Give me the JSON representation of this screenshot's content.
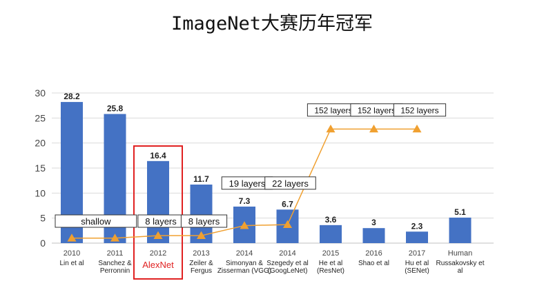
{
  "title": "ImageNet大赛历年冠军",
  "chart_data": {
    "type": "bar",
    "ylim": [
      0,
      30
    ],
    "yticks": [
      0,
      5,
      10,
      15,
      20,
      25,
      30
    ],
    "grid": true,
    "colors": {
      "bar": "#4472c4",
      "line": "#f0a030",
      "highlight": "#e02020",
      "text": "#222222"
    },
    "categories": [
      {
        "year": "2010",
        "team": "Lin et al"
      },
      {
        "year": "2011",
        "team": "Sanchez & Perronnin"
      },
      {
        "year": "2012",
        "team": "AlexNet"
      },
      {
        "year": "2013",
        "team": "Zeiler & Fergus"
      },
      {
        "year": "2014",
        "team": "Simonyan & Zisserman (VGG)"
      },
      {
        "year": "2014",
        "team": "Szegedy et al (GoogLeNet)"
      },
      {
        "year": "2015",
        "team": "He et al (ResNet)"
      },
      {
        "year": "2016",
        "team": "Shao et al"
      },
      {
        "year": "2017",
        "team": "Hu et al (SENet)"
      },
      {
        "year": "Human",
        "team": "Russakovsky et al"
      }
    ],
    "values": [
      28.2,
      25.8,
      16.4,
      11.7,
      7.3,
      6.7,
      3.6,
      3,
      2.3,
      5.1
    ],
    "value_labels": [
      "28.2",
      "25.8",
      "16.4",
      "11.7",
      "7.3",
      "6.7",
      "3.6",
      "3",
      "2.3",
      "5.1"
    ],
    "depth_series": {
      "marker_positions": [
        0,
        1,
        2,
        3,
        4,
        5,
        6,
        7,
        8
      ],
      "values": [
        1,
        1,
        1.5,
        1.5,
        3.5,
        3.7,
        22.8,
        22.8,
        22.8
      ]
    },
    "depth_labels": [
      {
        "text": "shallow",
        "anchor": 0,
        "span": 1.5,
        "value": 4.4
      },
      {
        "text": "8 layers",
        "anchor": 2,
        "span": 0,
        "value": 4.4
      },
      {
        "text": "8 layers",
        "anchor": 3,
        "span": 0,
        "value": 4.4
      },
      {
        "text": "19 layers",
        "anchor": 4,
        "span": 0,
        "value": 12.0
      },
      {
        "text": "22 layers",
        "anchor": 5,
        "span": 0,
        "value": 12.0
      },
      {
        "text": "152 layers",
        "anchor": 6,
        "span": 0,
        "value": 26.6
      },
      {
        "text": "152 layers",
        "anchor": 7,
        "span": 0,
        "value": 26.6
      },
      {
        "text": "152 layers",
        "anchor": 8,
        "span": 0,
        "value": 26.6
      }
    ],
    "highlight_index": 2
  }
}
